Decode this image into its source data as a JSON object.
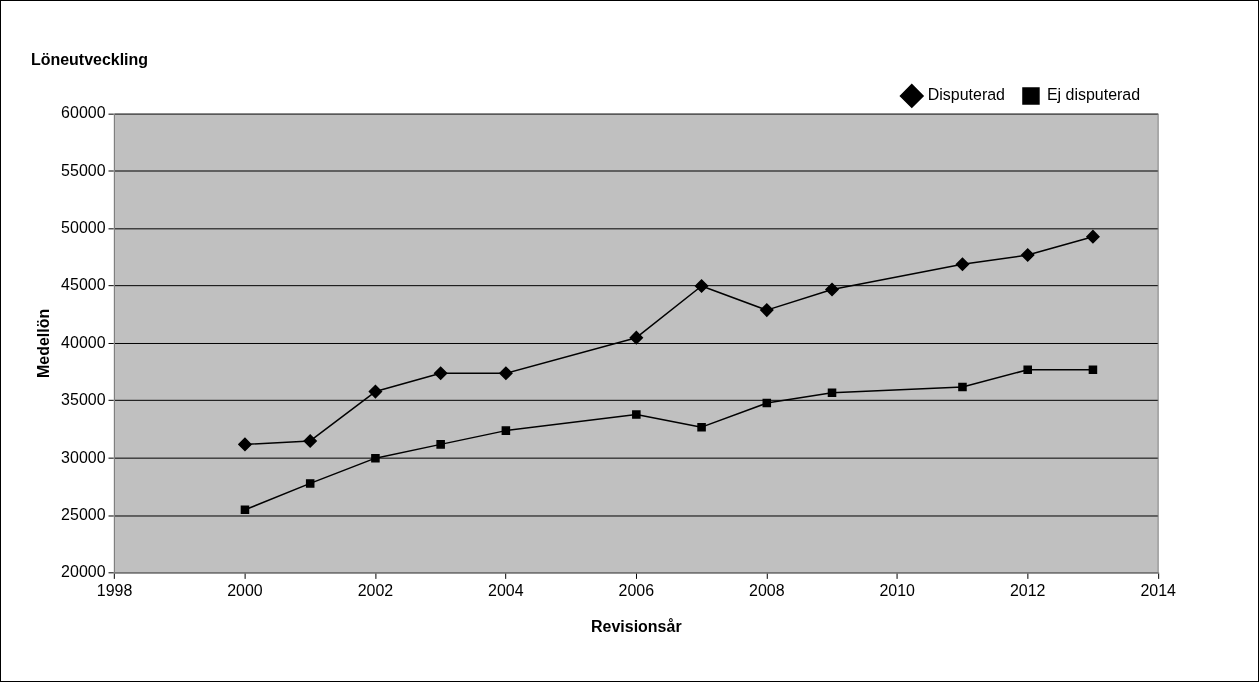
{
  "chart_data": {
    "type": "line",
    "title": "Löneutveckling",
    "xlabel": "Revisionsår",
    "ylabel": "Medellön",
    "x": [
      2000,
      2001,
      2002,
      2003,
      2004,
      2006,
      2007,
      2008,
      2009,
      2011,
      2012,
      2013
    ],
    "series": [
      {
        "name": "Disputerad",
        "color": "#000000",
        "marker": "diamond",
        "values": [
          31200,
          31500,
          35800,
          37400,
          37400,
          40500,
          45000,
          42900,
          44700,
          46900,
          47700,
          49300
        ]
      },
      {
        "name": "Ej disputerad",
        "color": "#000000",
        "marker": "square",
        "values": [
          25500,
          27800,
          30000,
          31200,
          32400,
          33800,
          32700,
          34800,
          35700,
          36200,
          37700,
          37700
        ]
      }
    ],
    "xlim": [
      1998,
      2014
    ],
    "xticks": [
      1998,
      2000,
      2002,
      2004,
      2006,
      2008,
      2010,
      2012,
      2014
    ],
    "ylim": [
      20000,
      60000
    ],
    "yticks": [
      20000,
      25000,
      30000,
      35000,
      40000,
      45000,
      50000,
      55000,
      60000
    ],
    "grid": "y",
    "legend": "top right",
    "line_style": "solid"
  }
}
